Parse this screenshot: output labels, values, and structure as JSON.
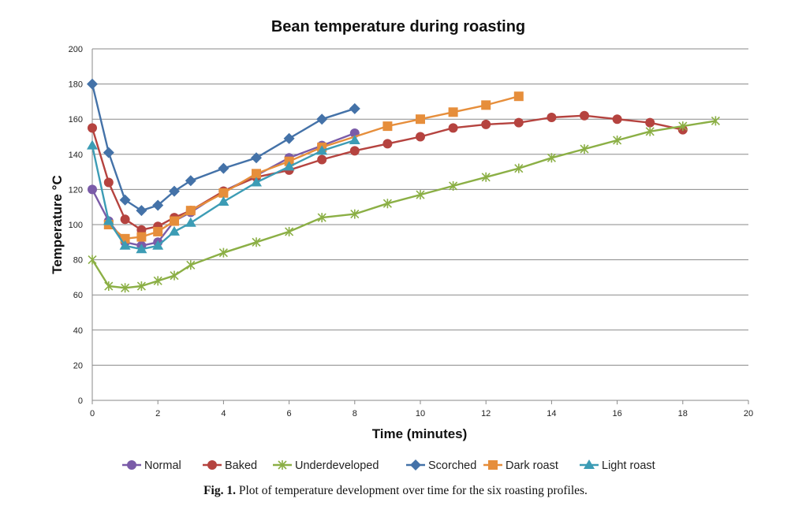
{
  "chart_data": {
    "type": "line",
    "title": "Bean temperature during roasting",
    "xlabel": "Time (minutes)",
    "ylabel": "Temperature °C",
    "xlim": [
      0,
      20
    ],
    "ylim": [
      0,
      200
    ],
    "x_ticks": [
      "0",
      "2",
      "4",
      "6",
      "8",
      "10",
      "12",
      "14",
      "16",
      "18",
      "20"
    ],
    "y_ticks": [
      "0",
      "20",
      "40",
      "60",
      "80",
      "100",
      "120",
      "140",
      "160",
      "180",
      "200"
    ],
    "grid": "horizontal",
    "legend_position": "bottom",
    "series": [
      {
        "name": "Normal",
        "color": "#7A5BA8",
        "marker": "circle",
        "x": [
          0,
          0.5,
          1,
          1.5,
          2,
          2.5,
          3,
          4,
          5,
          6,
          7,
          8
        ],
        "y": [
          120,
          102,
          90,
          88,
          90,
          102,
          107,
          119,
          128,
          138,
          145,
          152
        ]
      },
      {
        "name": "Baked",
        "color": "#B5433F",
        "marker": "circle",
        "x": [
          0,
          0.5,
          1,
          1.5,
          2,
          2.5,
          3,
          4,
          5,
          6,
          7,
          8,
          9,
          10,
          11,
          12,
          13,
          14,
          15,
          16,
          17,
          18
        ],
        "y": [
          155,
          124,
          103,
          97,
          99,
          104,
          108,
          119,
          127,
          131,
          137,
          142,
          146,
          150,
          155,
          157,
          158,
          161,
          162,
          160,
          158,
          154
        ]
      },
      {
        "name": "Underdeveloped",
        "color": "#8BAF45",
        "marker": "asterisk",
        "x": [
          0,
          0.5,
          1,
          1.5,
          2,
          2.5,
          3,
          4,
          5,
          6,
          7,
          8,
          9,
          10,
          11,
          12,
          13,
          14,
          15,
          16,
          17,
          18,
          19
        ],
        "y": [
          80,
          65,
          64,
          65,
          68,
          71,
          77,
          84,
          90,
          96,
          104,
          106,
          112,
          117,
          122,
          127,
          132,
          138,
          143,
          148,
          153,
          156,
          159
        ]
      },
      {
        "name": "Scorched",
        "color": "#4472A8",
        "marker": "diamond",
        "x": [
          0,
          0.5,
          1,
          1.5,
          2,
          2.5,
          3,
          4,
          5,
          6,
          7,
          8
        ],
        "y": [
          180,
          141,
          114,
          108,
          111,
          119,
          125,
          132,
          138,
          149,
          160,
          166
        ]
      },
      {
        "name": "Dark roast",
        "color": "#E68E3B",
        "marker": "square",
        "x": [
          0.5,
          1,
          1.5,
          2,
          2.5,
          3,
          4,
          5,
          6,
          7,
          9,
          10,
          11,
          12,
          13
        ],
        "y": [
          100,
          92,
          93,
          96,
          102,
          108,
          118,
          129,
          136,
          144,
          156,
          160,
          164,
          168,
          173
        ]
      },
      {
        "name": "Light roast",
        "color": "#3C9CB5",
        "marker": "triangle",
        "x": [
          0,
          0.5,
          1,
          1.5,
          2,
          2.5,
          3,
          4,
          5,
          6,
          7,
          8
        ],
        "y": [
          145,
          102,
          88,
          86,
          88,
          96,
          101,
          113,
          124,
          133,
          142,
          148
        ]
      }
    ]
  },
  "caption": {
    "label": "Fig. 1.",
    "text": " Plot of temperature development over time for the six roasting profiles."
  }
}
